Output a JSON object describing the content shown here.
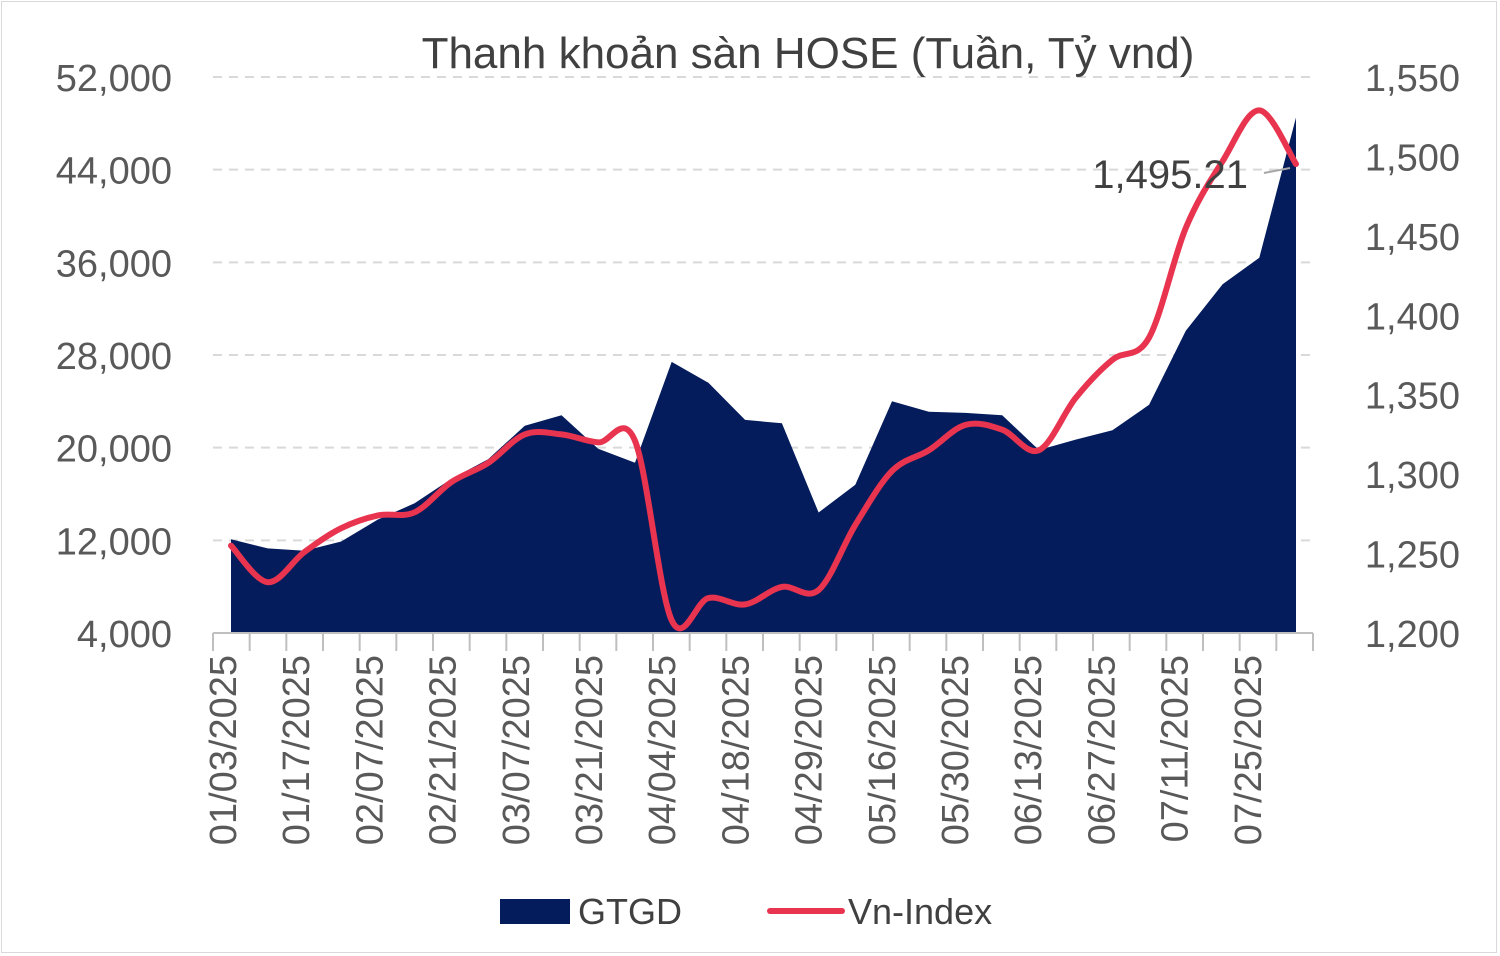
{
  "chart_data": {
    "type": "area",
    "title": "Thanh khoản sàn HOSE (Tuần, Tỷ vnd)",
    "xlabel": "",
    "ylabel": "",
    "y_left": {
      "ylim": [
        4000,
        52000
      ],
      "ticks": [
        "4,000",
        "12,000",
        "20,000",
        "28,000",
        "36,000",
        "44,000",
        "52,000"
      ]
    },
    "y_right": {
      "ylim": [
        1200,
        1550
      ],
      "ticks": [
        "1,200",
        "1,250",
        "1,300",
        "1,350",
        "1,400",
        "1,450",
        "1,500",
        "1,550"
      ]
    },
    "x_tick_labels": [
      "01/03/2025",
      "01/17/2025",
      "02/07/2025",
      "02/21/2025",
      "03/07/2025",
      "03/21/2025",
      "04/04/2025",
      "04/18/2025",
      "04/29/2025",
      "05/16/2025",
      "05/30/2025",
      "06/13/2025",
      "06/27/2025",
      "07/11/2025",
      "07/25/2025"
    ],
    "grid": true,
    "legend_position": "bottom",
    "series": [
      {
        "name": "GTGD",
        "type": "area",
        "axis": "left",
        "color": "#041c5c",
        "values": [
          12100,
          11300,
          11100,
          11900,
          13800,
          15200,
          17300,
          19000,
          21900,
          22800,
          19900,
          18700,
          27400,
          25600,
          22400,
          22100,
          14400,
          16800,
          24000,
          23100,
          23000,
          22800,
          19800,
          20700,
          21500,
          23700,
          30100,
          34100,
          36400,
          48500
        ]
      },
      {
        "name": "Vn-Index",
        "type": "line",
        "axis": "right",
        "color": "#e8344f",
        "values": [
          1255,
          1232,
          1251,
          1266,
          1274,
          1276,
          1295,
          1307,
          1325,
          1325,
          1320,
          1321,
          1208,
          1222,
          1218,
          1229,
          1227,
          1268,
          1302,
          1315,
          1331,
          1328,
          1315,
          1348,
          1372,
          1386,
          1455,
          1497,
          1529,
          1495.21
        ]
      }
    ],
    "annotations": [
      {
        "text": "1,495.21",
        "series": "Vn-Index",
        "point_index": 29
      }
    ]
  }
}
